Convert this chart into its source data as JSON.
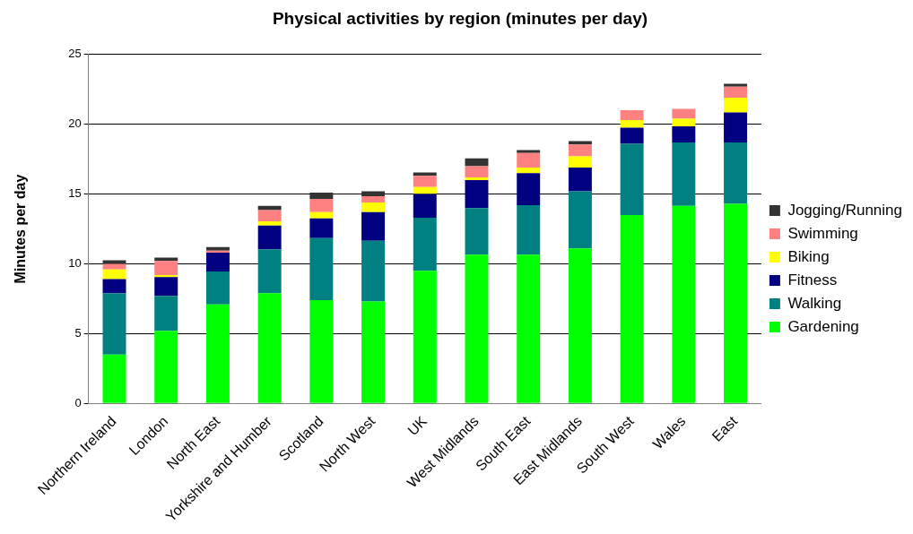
{
  "chart_data": {
    "type": "bar",
    "title": "Physical activities by region (minutes per day)",
    "ylabel": "Minutes per day",
    "stacked": true,
    "legend": "right",
    "grid": "y",
    "categories": [
      "Northern Ireland",
      "London",
      "North East",
      "Yorkshire and Humber",
      "Scotland",
      "North West",
      "UK",
      "West Midlands",
      "South East",
      "East Midlands",
      "South West",
      "Wales",
      "East"
    ],
    "ylim": [
      0,
      25
    ],
    "yticks": [
      0,
      5,
      10,
      15,
      20,
      25
    ],
    "series": [
      {
        "name": "Gardening",
        "color": "#00ff00",
        "values": [
          3.5,
          5.2,
          7.1,
          7.9,
          7.4,
          7.3,
          9.5,
          10.65,
          10.65,
          11.1,
          13.5,
          14.15,
          14.3
        ]
      },
      {
        "name": "Walking",
        "color": "#008080",
        "values": [
          4.4,
          2.5,
          2.35,
          3.15,
          4.45,
          4.35,
          3.8,
          3.35,
          3.55,
          4.1,
          5.1,
          4.55,
          4.4
        ]
      },
      {
        "name": "Fitness",
        "color": "#000080",
        "values": [
          1.0,
          1.35,
          1.35,
          1.7,
          1.4,
          2.05,
          1.7,
          2.0,
          2.3,
          1.7,
          1.15,
          1.15,
          2.15
        ]
      },
      {
        "name": "Biking",
        "color": "#ffff00",
        "values": [
          0.7,
          0.15,
          0,
          0.3,
          0.45,
          0.7,
          0.5,
          0.2,
          0.4,
          0.8,
          0.55,
          0.55,
          1.05
        ]
      },
      {
        "name": "Swimming",
        "color": "#ff8080",
        "values": [
          0.4,
          1.0,
          0.15,
          0.8,
          0.95,
          0.45,
          0.8,
          0.8,
          1.05,
          0.85,
          0.7,
          0.7,
          0.8
        ]
      },
      {
        "name": "Jogging/Running",
        "color": "#333333",
        "values": [
          0.25,
          0.25,
          0.25,
          0.3,
          0.45,
          0.35,
          0.25,
          0.55,
          0.2,
          0.25,
          0,
          0,
          0.2
        ]
      }
    ]
  }
}
